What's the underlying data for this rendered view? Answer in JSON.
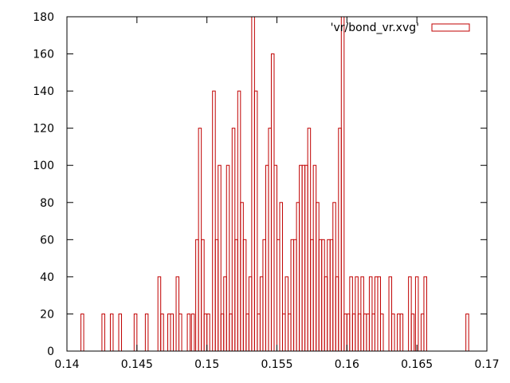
{
  "chart_data": {
    "type": "bar",
    "style": "step-histogram",
    "color": "#c00000",
    "xlim": [
      0.14,
      0.17
    ],
    "ylim": [
      0,
      180
    ],
    "xticks": [
      "0.14",
      "0.145",
      "0.15",
      "0.155",
      "0.16",
      "0.165",
      "0.17"
    ],
    "yticks": [
      "0",
      "20",
      "40",
      "60",
      "80",
      "100",
      "120",
      "140",
      "160",
      "180"
    ],
    "grid": false,
    "legend_position": "top-right",
    "series": [
      {
        "name": "'vr/bond_vr.xvg'",
        "bin_width": 0.0002,
        "bins": [
          [
            0.1411,
            20
          ],
          [
            0.1426,
            20
          ],
          [
            0.1432,
            20
          ],
          [
            0.1438,
            20
          ],
          [
            0.1449,
            20
          ],
          [
            0.1457,
            20
          ],
          [
            0.1466,
            40
          ],
          [
            0.1468,
            20
          ],
          [
            0.1473,
            20
          ],
          [
            0.1475,
            20
          ],
          [
            0.1479,
            40
          ],
          [
            0.1481,
            20
          ],
          [
            0.1487,
            20
          ],
          [
            0.149,
            20
          ],
          [
            0.1493,
            60
          ],
          [
            0.1495,
            120
          ],
          [
            0.1497,
            60
          ],
          [
            0.1499,
            20
          ],
          [
            0.1501,
            20
          ],
          [
            0.1505,
            140
          ],
          [
            0.1507,
            60
          ],
          [
            0.1509,
            100
          ],
          [
            0.1511,
            20
          ],
          [
            0.1513,
            40
          ],
          [
            0.1515,
            100
          ],
          [
            0.1517,
            20
          ],
          [
            0.1519,
            120
          ],
          [
            0.1521,
            60
          ],
          [
            0.1523,
            140
          ],
          [
            0.1525,
            80
          ],
          [
            0.1527,
            60
          ],
          [
            0.1529,
            20
          ],
          [
            0.1531,
            40
          ],
          [
            0.1533,
            180
          ],
          [
            0.1535,
            140
          ],
          [
            0.1537,
            20
          ],
          [
            0.1539,
            40
          ],
          [
            0.1541,
            60
          ],
          [
            0.1543,
            100
          ],
          [
            0.1545,
            120
          ],
          [
            0.1547,
            160
          ],
          [
            0.1549,
            100
          ],
          [
            0.1551,
            60
          ],
          [
            0.1553,
            80
          ],
          [
            0.1555,
            20
          ],
          [
            0.1557,
            40
          ],
          [
            0.1559,
            20
          ],
          [
            0.1561,
            60
          ],
          [
            0.1563,
            60
          ],
          [
            0.1565,
            80
          ],
          [
            0.1567,
            100
          ],
          [
            0.1569,
            100
          ],
          [
            0.1571,
            100
          ],
          [
            0.1573,
            120
          ],
          [
            0.1575,
            60
          ],
          [
            0.1577,
            100
          ],
          [
            0.1579,
            80
          ],
          [
            0.1581,
            60
          ],
          [
            0.1583,
            60
          ],
          [
            0.1585,
            40
          ],
          [
            0.1587,
            60
          ],
          [
            0.1589,
            60
          ],
          [
            0.1591,
            80
          ],
          [
            0.1593,
            40
          ],
          [
            0.1595,
            120
          ],
          [
            0.1597,
            180
          ],
          [
            0.1599,
            20
          ],
          [
            0.1601,
            20
          ],
          [
            0.1603,
            40
          ],
          [
            0.1605,
            20
          ],
          [
            0.1607,
            40
          ],
          [
            0.1609,
            20
          ],
          [
            0.1611,
            40
          ],
          [
            0.1613,
            20
          ],
          [
            0.1615,
            20
          ],
          [
            0.1617,
            40
          ],
          [
            0.1619,
            20
          ],
          [
            0.1621,
            40
          ],
          [
            0.1623,
            40
          ],
          [
            0.1625,
            20
          ],
          [
            0.1631,
            40
          ],
          [
            0.1633,
            20
          ],
          [
            0.1637,
            20
          ],
          [
            0.1639,
            20
          ],
          [
            0.1645,
            40
          ],
          [
            0.1647,
            20
          ],
          [
            0.165,
            40
          ],
          [
            0.1654,
            20
          ],
          [
            0.1656,
            40
          ],
          [
            0.1686,
            20
          ]
        ]
      }
    ]
  }
}
